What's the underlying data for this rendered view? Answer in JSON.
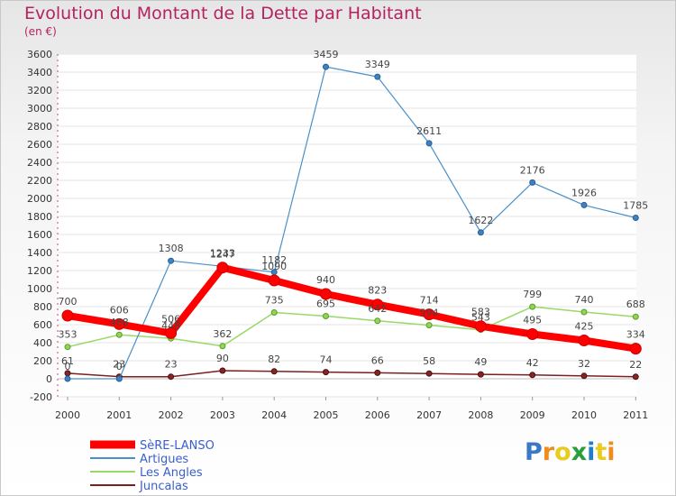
{
  "chart_data": {
    "type": "line",
    "title": "Evolution du Montant de la Dette par Habitant",
    "subtitle": "(en €)",
    "xlabel": "",
    "ylabel": "",
    "ylim": [
      -200,
      3600
    ],
    "yticks": [
      -200,
      0,
      200,
      400,
      600,
      800,
      1000,
      1200,
      1400,
      1600,
      1800,
      2000,
      2200,
      2400,
      2600,
      2800,
      3000,
      3200,
      3400,
      3600
    ],
    "categories": [
      "2000",
      "2001",
      "2002",
      "2003",
      "2004",
      "2005",
      "2006",
      "2007",
      "2008",
      "2009",
      "2010",
      "2011"
    ],
    "series": [
      {
        "name": "SèRE-LANSO",
        "legend_label": "SèRE-LANSO",
        "color": "#ff0000",
        "values": [
          700,
          606,
          506,
          1233,
          1090,
          940,
          823,
          714,
          583,
          495,
          425,
          334
        ]
      },
      {
        "name": "Artigues",
        "legend_label": "Artigues",
        "color": "#4a90c8",
        "values": [
          0,
          0,
          1308,
          1247,
          1182,
          3459,
          3349,
          2611,
          1622,
          2176,
          1926,
          1785
        ]
      },
      {
        "name": "Les Angles",
        "legend_label": "Les Angles",
        "color": "#99d966",
        "values": [
          353,
          488,
          448,
          362,
          735,
          695,
          642,
          594,
          543,
          799,
          740,
          688
        ]
      },
      {
        "name": "Juncalas",
        "legend_label": "Juncalas",
        "color": "#7a2020",
        "values": [
          61,
          23,
          23,
          90,
          82,
          74,
          66,
          58,
          49,
          42,
          32,
          22
        ]
      }
    ]
  },
  "branding": {
    "logo_letters": [
      "P",
      "r",
      "o",
      "x",
      "i",
      "t",
      "i"
    ],
    "logo_colors": [
      "#3a78c8",
      "#f08c1e",
      "#e8cc1e",
      "#2a9e3a",
      "#1e7ec8",
      "#e8cc1e",
      "#f08c1e"
    ]
  }
}
